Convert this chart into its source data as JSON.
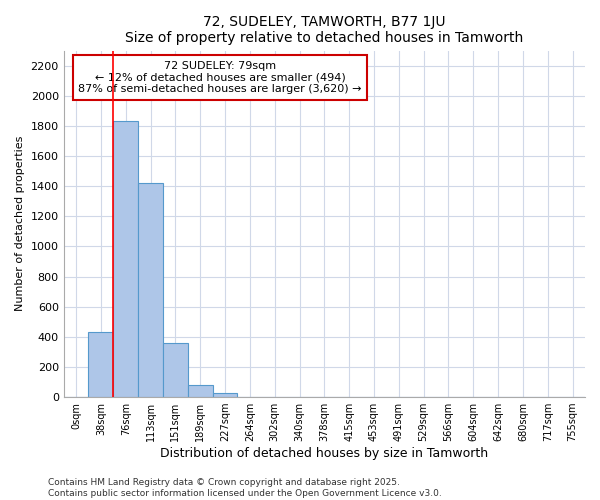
{
  "title1": "72, SUDELEY, TAMWORTH, B77 1JU",
  "title2": "Size of property relative to detached houses in Tamworth",
  "xlabel": "Distribution of detached houses by size in Tamworth",
  "ylabel": "Number of detached properties",
  "bar_labels": [
    "0sqm",
    "38sqm",
    "76sqm",
    "113sqm",
    "151sqm",
    "189sqm",
    "227sqm",
    "264sqm",
    "302sqm",
    "340sqm",
    "378sqm",
    "415sqm",
    "453sqm",
    "491sqm",
    "529sqm",
    "566sqm",
    "604sqm",
    "642sqm",
    "680sqm",
    "717sqm",
    "755sqm"
  ],
  "bar_values": [
    0,
    430,
    1830,
    1420,
    360,
    80,
    25,
    0,
    0,
    0,
    0,
    0,
    0,
    0,
    0,
    0,
    0,
    0,
    0,
    0,
    0
  ],
  "bar_color": "#aec6e8",
  "bar_edge_color": "#5599cc",
  "annotation_text": "72 SUDELEY: 79sqm\n← 12% of detached houses are smaller (494)\n87% of semi-detached houses are larger (3,620) →",
  "annotation_box_color": "#ffffff",
  "annotation_box_edge_color": "#cc0000",
  "ylim": [
    0,
    2300
  ],
  "yticks": [
    0,
    200,
    400,
    600,
    800,
    1000,
    1200,
    1400,
    1600,
    1800,
    2000,
    2200
  ],
  "footer1": "Contains HM Land Registry data © Crown copyright and database right 2025.",
  "footer2": "Contains public sector information licensed under the Open Government Licence v3.0.",
  "bg_color": "#ffffff",
  "plot_bg_color": "#ffffff",
  "grid_color": "#d0d8e8"
}
